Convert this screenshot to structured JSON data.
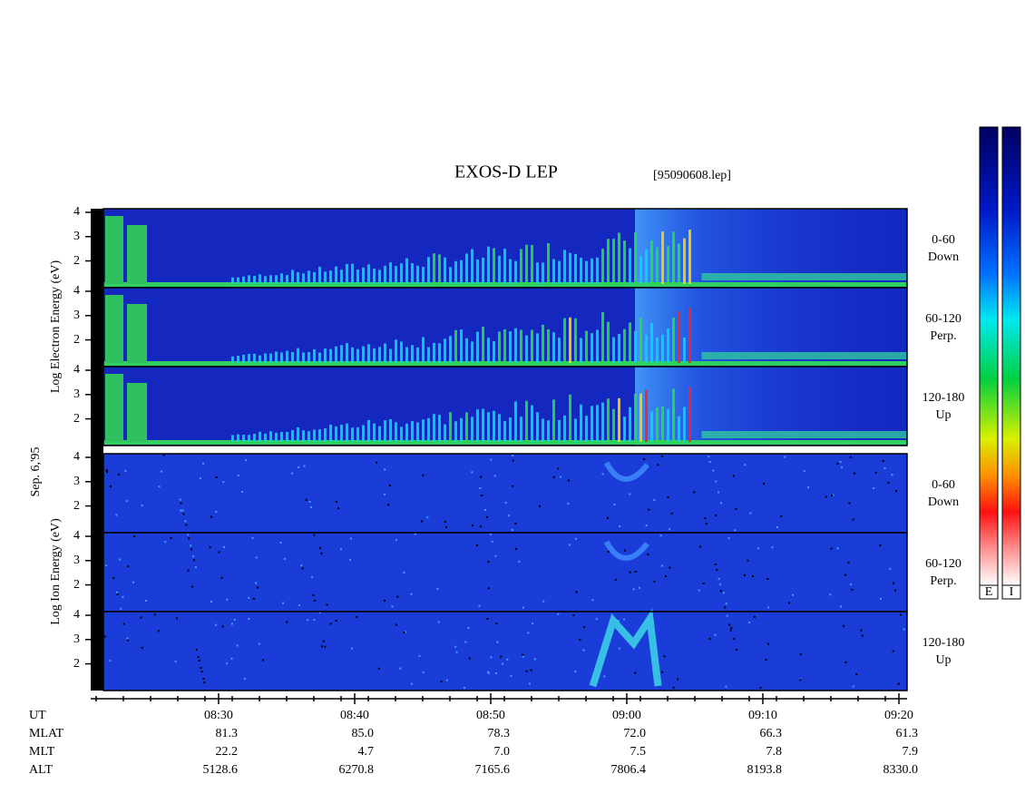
{
  "header": {
    "title": "EXOS-D LEP",
    "file": "[95090608.lep]"
  },
  "date": "Sep. 6,'95",
  "energy_lim": [
    0.9,
    4.15
  ],
  "energy_ticks": [
    2,
    3,
    4
  ],
  "electron": {
    "axis_label": "Log Electron Energy (eV)",
    "panels": [
      {
        "range": "0-60",
        "direction": "Down"
      },
      {
        "range": "60-120",
        "direction": "Perp."
      },
      {
        "range": "120-180",
        "direction": "Up"
      }
    ]
  },
  "ion": {
    "axis_label": "Log Ion Energy (eV)",
    "panels": [
      {
        "range": "0-60",
        "direction": "Down"
      },
      {
        "range": "60-120",
        "direction": "Perp."
      },
      {
        "range": "120-180",
        "direction": "Up"
      }
    ]
  },
  "time_axis": {
    "label": "UT",
    "xlim": [
      500.6,
      560.6
    ],
    "xticks": [
      {
        "value": 510,
        "label": "08:30"
      },
      {
        "value": 520,
        "label": "08:40"
      },
      {
        "value": 530,
        "label": "08:50"
      },
      {
        "value": 540,
        "label": "09:00"
      },
      {
        "value": 550,
        "label": "09:10"
      },
      {
        "value": 560,
        "label": "09:20"
      }
    ]
  },
  "ephemeris": [
    {
      "name": "MLAT",
      "values": [
        "81.3",
        "85.0",
        "78.3",
        "72.0",
        "66.3",
        "61.3"
      ]
    },
    {
      "name": "MLT",
      "values": [
        "22.2",
        "4.7",
        "7.0",
        "7.5",
        "7.8",
        "7.9"
      ]
    },
    {
      "name": "ALT",
      "values": [
        "5128.6",
        "6270.8",
        "7165.6",
        "7806.4",
        "8193.8",
        "8330.0"
      ]
    }
  ],
  "colorbar": {
    "labels": [
      "E",
      "I"
    ]
  }
}
